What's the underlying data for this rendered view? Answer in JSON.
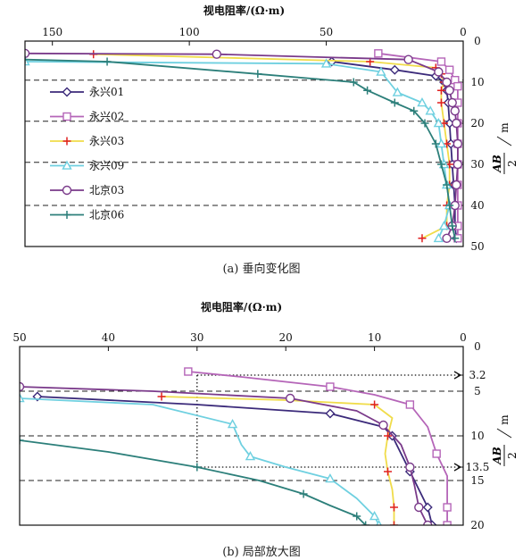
{
  "chart_data": [
    {
      "type": "line",
      "title": "",
      "xlabel": "视电阻率/(Ω·m)",
      "ylabel": "AB/2 /m",
      "xlim": [
        160,
        0
      ],
      "ylim": [
        0,
        50
      ],
      "x_ticks": [
        150,
        100,
        50,
        0
      ],
      "y_ticks": [
        0,
        10,
        20,
        30,
        40,
        50
      ],
      "dashed_y": [
        9.5,
        19.5,
        29.5,
        40
      ],
      "legend_position": "left",
      "series": [
        {
          "name": "永兴01",
          "color": "#3b2a7a",
          "marker": "diamond",
          "points": [
            [
              48,
              5
            ],
            [
              25,
              7
            ],
            [
              10,
              8.5
            ],
            [
              7,
              10
            ],
            [
              6,
              12
            ],
            [
              5.5,
              15
            ],
            [
              5,
              20
            ],
            [
              4.5,
              25
            ],
            [
              4,
              30
            ],
            [
              3.5,
              35
            ],
            [
              3,
              40
            ],
            [
              3,
              45
            ],
            [
              2.5,
              48
            ]
          ]
        },
        {
          "name": "永兴02",
          "color": "#b565b8",
          "marker": "square",
          "points": [
            [
              31,
              3
            ],
            [
              8,
              5
            ],
            [
              5,
              7
            ],
            [
              3,
              9.5
            ],
            [
              2,
              11
            ],
            [
              2,
              15
            ],
            [
              2,
              20
            ],
            [
              2,
              25
            ],
            [
              2,
              30
            ],
            [
              2,
              35
            ],
            [
              2,
              40
            ],
            [
              2,
              45
            ],
            [
              2,
              48
            ]
          ]
        },
        {
          "name": "永兴03",
          "color": "#f0dc4a",
          "marker": "plus",
          "marker_color": "#e02020",
          "points": [
            [
              135,
              3.2
            ],
            [
              34,
              5
            ],
            [
              10,
              6.5
            ],
            [
              8,
              8
            ],
            [
              7,
              10
            ],
            [
              8,
              12
            ],
            [
              8,
              15
            ],
            [
              7,
              20
            ],
            [
              6,
              25
            ],
            [
              5,
              30
            ],
            [
              5,
              35
            ],
            [
              6,
              40
            ],
            [
              6,
              45
            ],
            [
              15,
              48
            ]
          ]
        },
        {
          "name": "永兴09",
          "color": "#6fd0e0",
          "marker": "triangle",
          "points": [
            [
              160,
              5
            ],
            [
              50,
              5.5
            ],
            [
              30,
              7.5
            ],
            [
              24,
              12.5
            ],
            [
              15,
              15
            ],
            [
              12,
              17
            ],
            [
              9,
              20
            ],
            [
              8,
              25
            ],
            [
              7,
              30
            ],
            [
              6,
              35
            ],
            [
              5,
              40
            ],
            [
              7,
              45
            ],
            [
              9,
              48
            ]
          ]
        },
        {
          "name": "北京03",
          "color": "#7a3a8a",
          "marker": "circle",
          "points": [
            [
              160,
              3
            ],
            [
              90,
              3.2
            ],
            [
              20,
              4.5
            ],
            [
              9,
              7.5
            ],
            [
              6,
              10
            ],
            [
              5,
              12
            ],
            [
              4,
              15
            ],
            [
              3,
              17
            ],
            [
              2.5,
              20
            ],
            [
              2,
              25
            ],
            [
              2,
              30
            ],
            [
              2.5,
              35
            ],
            [
              3,
              40
            ],
            [
              4,
              45
            ],
            [
              6,
              48
            ]
          ]
        },
        {
          "name": "北京06",
          "color": "#2c7f7a",
          "marker": "plus",
          "points": [
            [
              160,
              4.5
            ],
            [
              130,
              5
            ],
            [
              75,
              8
            ],
            [
              40,
              10
            ],
            [
              35,
              12
            ],
            [
              25,
              15
            ],
            [
              18,
              17
            ],
            [
              14,
              20
            ],
            [
              10,
              25
            ],
            [
              8,
              30
            ],
            [
              6,
              35
            ],
            [
              5,
              40
            ],
            [
              4,
              45
            ],
            [
              3,
              48
            ]
          ]
        }
      ]
    },
    {
      "type": "line",
      "title": "",
      "xlabel": "视电阻率/(Ω·m)",
      "ylabel": "AB/2 /m",
      "xlim": [
        50,
        0
      ],
      "ylim": [
        0,
        20
      ],
      "x_ticks": [
        50,
        40,
        30,
        20,
        10,
        0
      ],
      "y_ticks": [
        0,
        3.2,
        5,
        10,
        13.5,
        15,
        20
      ],
      "dashed_y": [
        5,
        10,
        15
      ],
      "dotted_x": 30,
      "dotted_arrows_y": [
        3.2,
        13.5
      ],
      "series": [
        {
          "name": "永兴01",
          "color": "#3b2a7a",
          "marker": "diamond",
          "points": [
            [
              48,
              5.6
            ],
            [
              30,
              6.5
            ],
            [
              15,
              7.5
            ],
            [
              9,
              9
            ],
            [
              8,
              10
            ],
            [
              7,
              12
            ],
            [
              6,
              14
            ],
            [
              5,
              16
            ],
            [
              4,
              18
            ],
            [
              3.5,
              20
            ]
          ]
        },
        {
          "name": "永兴02",
          "color": "#b565b8",
          "marker": "square",
          "points": [
            [
              31,
              2.8
            ],
            [
              25,
              3.4
            ],
            [
              15,
              4.5
            ],
            [
              10,
              5.4
            ],
            [
              6,
              6.5
            ],
            [
              4,
              9
            ],
            [
              3,
              12
            ],
            [
              1.8,
              14.5
            ],
            [
              1.8,
              18
            ],
            [
              1.8,
              20
            ]
          ]
        },
        {
          "name": "永兴03",
          "color": "#f0dc4a",
          "marker": "plus",
          "marker_color": "#e02020",
          "points": [
            [
              34,
              5.6
            ],
            [
              20,
              6
            ],
            [
              10,
              6.5
            ],
            [
              8,
              8
            ],
            [
              8.5,
              10
            ],
            [
              8.8,
              12
            ],
            [
              8.5,
              14
            ],
            [
              8,
              16
            ],
            [
              7.8,
              18
            ],
            [
              7.8,
              20
            ]
          ]
        },
        {
          "name": "永兴09",
          "color": "#6fd0e0",
          "marker": "triangle",
          "points": [
            [
              50,
              5.8
            ],
            [
              35,
              6.5
            ],
            [
              26,
              8.7
            ],
            [
              25,
              11
            ],
            [
              24,
              12.3
            ],
            [
              20,
              13.5
            ],
            [
              15,
              14.8
            ],
            [
              12,
              17
            ],
            [
              10,
              19
            ],
            [
              9.5,
              20
            ]
          ]
        },
        {
          "name": "北京03",
          "color": "#7a3a8a",
          "marker": "circle",
          "points": [
            [
              50,
              4.5
            ],
            [
              35,
              5
            ],
            [
              19.5,
              5.8
            ],
            [
              12,
              7.2
            ],
            [
              9,
              8.8
            ],
            [
              7,
              11
            ],
            [
              6,
              13.5
            ],
            [
              5.5,
              15.5
            ],
            [
              5,
              18
            ],
            [
              4,
              20
            ]
          ]
        },
        {
          "name": "北京06",
          "color": "#2c7f7a",
          "marker": "plus",
          "points": [
            [
              50,
              10.5
            ],
            [
              40,
              11.8
            ],
            [
              30,
              13.5
            ],
            [
              23,
              15
            ],
            [
              18,
              16.5
            ],
            [
              15,
              17.8
            ],
            [
              12,
              19
            ],
            [
              11,
              20
            ]
          ]
        }
      ]
    }
  ],
  "captions": {
    "a": "(a) 垂向变化图",
    "b": "(b) 局部放大图"
  }
}
